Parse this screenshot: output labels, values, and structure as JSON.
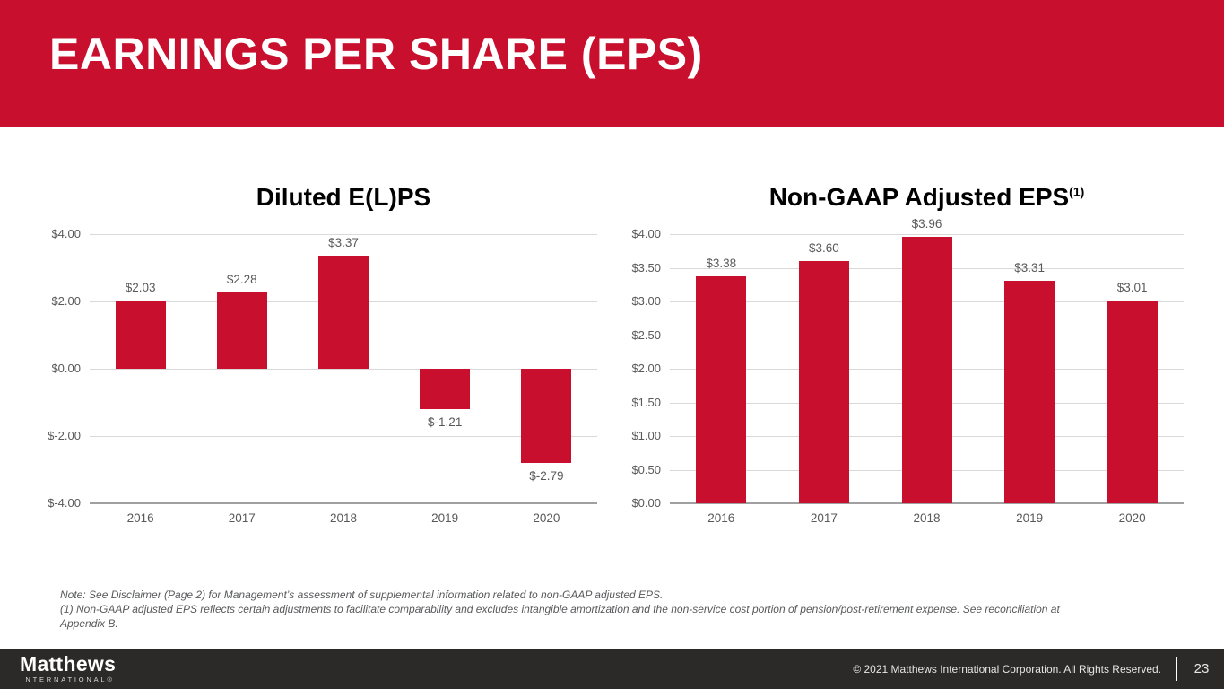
{
  "header": {
    "title": "EARNINGS PER SHARE (EPS)"
  },
  "colors": {
    "brand_red": "#C8102E",
    "footer_bg": "#2B2A28",
    "axis_text_gray": "#595959",
    "gridline_gray": "#D9D9D9"
  },
  "chart_data": [
    {
      "type": "bar",
      "title": "Diluted E(L)PS",
      "title_superscript": "",
      "categories": [
        "2016",
        "2017",
        "2018",
        "2019",
        "2020"
      ],
      "values": [
        2.03,
        2.28,
        3.37,
        -1.21,
        -2.79
      ],
      "value_labels": [
        "$2.03",
        "$2.28",
        "$3.37",
        "$-1.21",
        "$-2.79"
      ],
      "xlabel": "",
      "ylabel": "",
      "ylim": [
        -4,
        4
      ],
      "ytick_values": [
        4,
        2,
        0,
        -2,
        -4
      ],
      "ytick_labels": [
        "$4.00",
        "$2.00",
        "$0.00",
        "$-2.00",
        "$-4.00"
      ],
      "bar_color": "#C8102E",
      "grid": true,
      "legend": "none"
    },
    {
      "type": "bar",
      "title": "Non-GAAP Adjusted EPS",
      "title_superscript": "(1)",
      "categories": [
        "2016",
        "2017",
        "2018",
        "2019",
        "2020"
      ],
      "values": [
        3.38,
        3.6,
        3.96,
        3.31,
        3.01
      ],
      "value_labels": [
        "$3.38",
        "$3.60",
        "$3.96",
        "$3.31",
        "$3.01"
      ],
      "xlabel": "",
      "ylabel": "",
      "ylim": [
        0,
        4
      ],
      "ytick_values": [
        0,
        0.5,
        1,
        1.5,
        2,
        2.5,
        3,
        3.5,
        4
      ],
      "ytick_labels": [
        "$0.00",
        "$0.50",
        "$1.00",
        "$1.50",
        "$2.00",
        "$2.50",
        "$3.00",
        "$3.50",
        "$4.00"
      ],
      "bar_color": "#C8102E",
      "grid": true,
      "legend": "none"
    }
  ],
  "footnotes": {
    "note": "Note: See Disclaimer (Page 2) for Management’s assessment of supplemental information related to non-GAAP adjusted EPS.",
    "footnote_1": "(1) Non-GAAP adjusted EPS reflects certain adjustments to facilitate comparability and excludes intangible amortization and the non-service cost portion of pension/post-retirement expense. See reconciliation at Appendix B."
  },
  "footer": {
    "logo_text": "Matthews",
    "logo_subtext": "INTERNATIONAL®",
    "copyright": "© 2021 Matthews International Corporation. All Rights Reserved.",
    "page_number": "23"
  }
}
